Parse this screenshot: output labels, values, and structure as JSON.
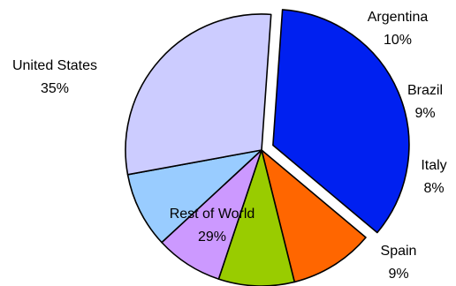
{
  "chart_data": {
    "type": "pie",
    "title": "",
    "slices": [
      {
        "label": "United States",
        "value": 35,
        "value_label": "35%",
        "color": "#0020f0",
        "exploded": true
      },
      {
        "label": "Argentina",
        "value": 10,
        "value_label": "10%",
        "color": "#ff6600",
        "exploded": false
      },
      {
        "label": "Brazil",
        "value": 9,
        "value_label": "9%",
        "color": "#99cc00",
        "exploded": false
      },
      {
        "label": "Italy",
        "value": 8,
        "value_label": "8%",
        "color": "#cc99ff",
        "exploded": false
      },
      {
        "label": "Spain",
        "value": 9,
        "value_label": "9%",
        "color": "#99ccff",
        "exploded": false
      },
      {
        "label": "Rest of World",
        "value": 29,
        "value_label": "29%",
        "color": "#ccccff",
        "exploded": false
      }
    ],
    "legend": "none",
    "start_angle_deg": 4,
    "direction": "clockwise"
  }
}
